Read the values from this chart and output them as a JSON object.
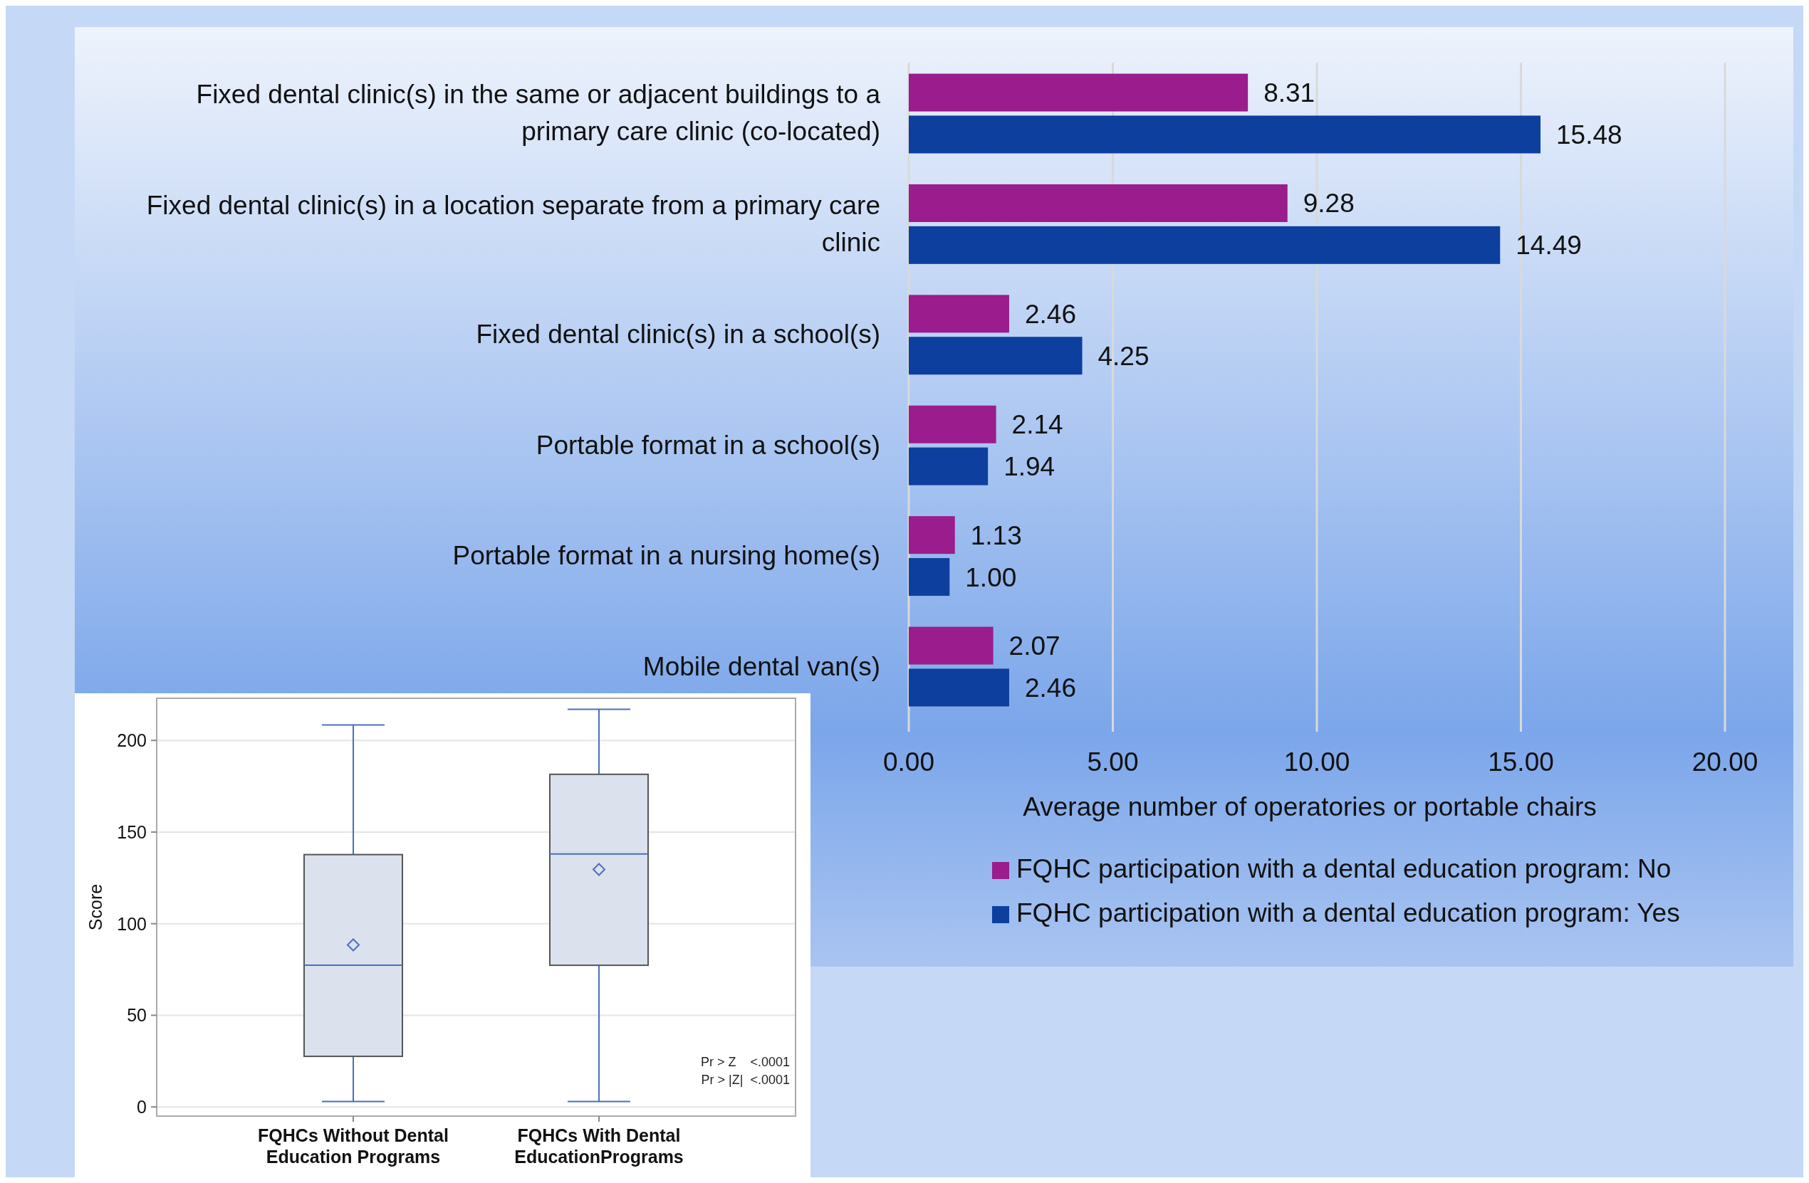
{
  "chart_data": [
    {
      "type": "bar",
      "orientation": "horizontal",
      "categories": [
        "Fixed dental clinic(s) in the same or adjacent buildings to a primary care clinic (co-located)",
        "Fixed dental clinic(s) in a location separate from a primary care clinic",
        "Fixed dental clinic(s) in a school(s)",
        "Portable format in a school(s)",
        "Portable format in a nursing home(s)",
        "Mobile dental van(s)"
      ],
      "series": [
        {
          "name": "FQHC participation with a dental education program: No",
          "color": "#9b1c8c",
          "values": [
            8.31,
            9.28,
            2.46,
            2.14,
            1.13,
            2.07
          ],
          "value_labels": [
            "8.31",
            "9.28",
            "2.46",
            "2.14",
            "1.13",
            "2.07"
          ]
        },
        {
          "name": "FQHC participation with a dental education program: Yes",
          "color": "#0d3f9f",
          "values": [
            15.48,
            14.49,
            4.25,
            1.94,
            1.0,
            2.46
          ],
          "value_labels": [
            "15.48",
            "14.49",
            "4.25",
            "1.94",
            "1.00",
            "2.46"
          ]
        }
      ],
      "xlabel": "Average  number  of operatories  or portable  chairs",
      "xlim": [
        0,
        20
      ],
      "xticks": [
        {
          "value": 0,
          "label": "0.00"
        },
        {
          "value": 5,
          "label": "5.00"
        },
        {
          "value": 10,
          "label": "10.00"
        },
        {
          "value": 15,
          "label": "15.00"
        },
        {
          "value": 20,
          "label": "20.00"
        }
      ],
      "grid": "x",
      "legend": "bottom"
    },
    {
      "type": "box",
      "categories": [
        "FQHCs Without Dental Education Programs",
        "FQHCs With Dental EducationPrograms"
      ],
      "boxes": [
        {
          "low": 3,
          "q1": 27.6,
          "median": 77.3,
          "q3": 137.7,
          "high": 208.4,
          "mean": 88.4
        },
        {
          "low": 3,
          "q1": 77.3,
          "median": 138,
          "q3": 181.5,
          "high": 217,
          "mean": 129.6
        }
      ],
      "color": "#dbe2ee",
      "ylabel": "Score",
      "ylim": [
        -5,
        223
      ],
      "yticks": [
        0,
        50,
        100,
        150,
        200
      ],
      "grid": "y",
      "annotations": [
        "Pr > Z    <.0001",
        "Pr > |Z|  <.0001"
      ]
    }
  ]
}
